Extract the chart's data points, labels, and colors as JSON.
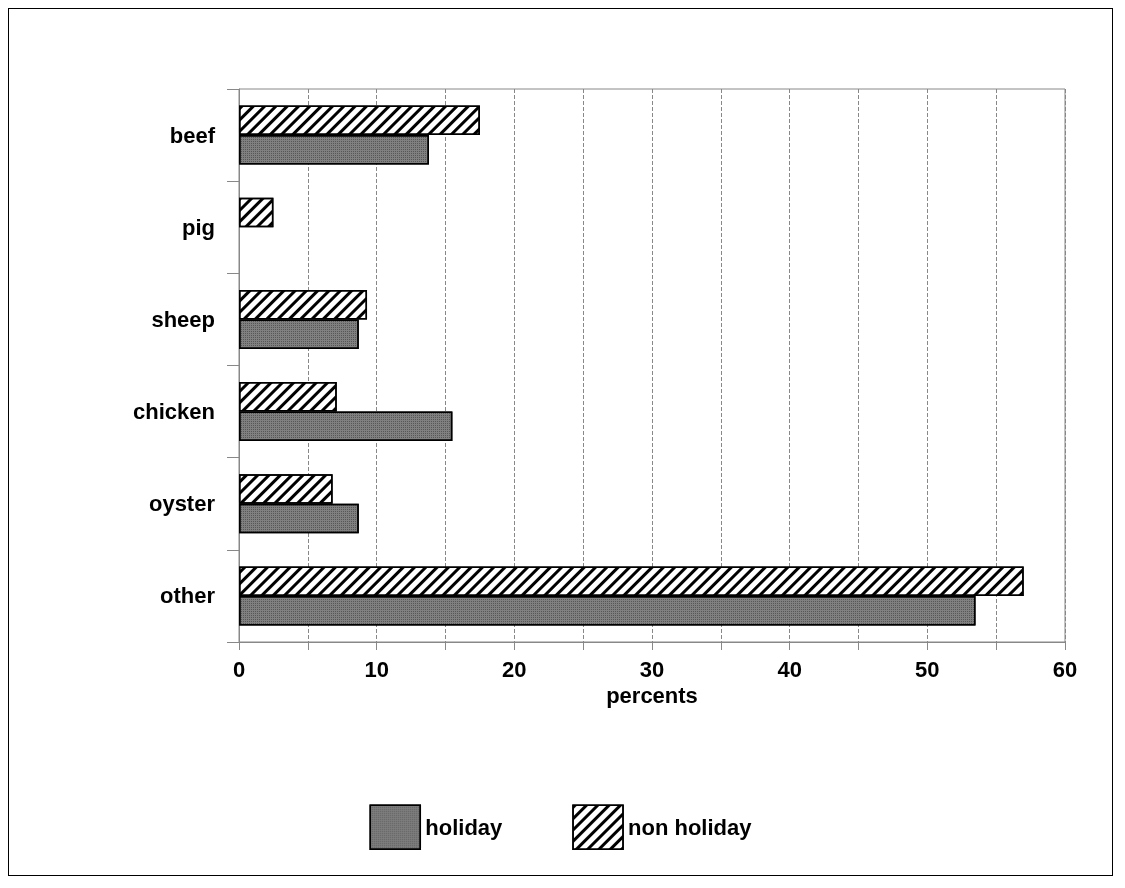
{
  "chart_data": {
    "type": "bar",
    "orientation": "horizontal",
    "xlabel": "percents",
    "categories": [
      "beef",
      "pig",
      "sheep",
      "chicken",
      "oyster",
      "other"
    ],
    "series": [
      {
        "name": "holiday",
        "color": "#808080",
        "values": [
          13.8,
          0,
          8.7,
          15.5,
          8.7,
          53.5
        ]
      },
      {
        "name": "non holiday",
        "color": "#ffffff",
        "values": [
          17.5,
          2.5,
          9.3,
          7.1,
          6.8,
          57.0
        ]
      }
    ],
    "xlim": [
      0,
      60
    ],
    "xticks": [
      0,
      {
        "value": 5,
        "label": null
      },
      10,
      {
        "value": 15,
        "label": null
      },
      20,
      {
        "value": 25,
        "label": null
      },
      30,
      {
        "value": 35,
        "label": null
      },
      40,
      {
        "value": 45,
        "label": null
      },
      50,
      {
        "value": 55,
        "label": null
      },
      60
    ],
    "grid": "x",
    "legend": "bottom"
  }
}
